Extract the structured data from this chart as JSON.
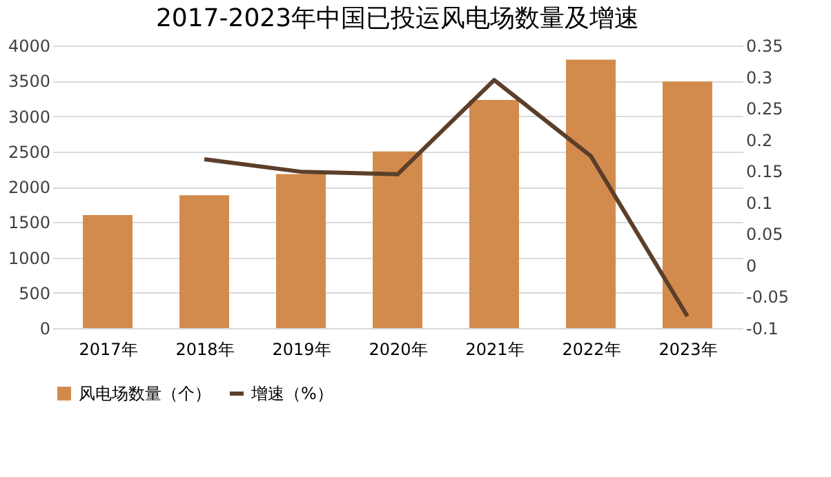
{
  "chart_data": {
    "type": "bar",
    "title": "2017-2023年中国已投运风电场数量及增速",
    "categories": [
      "2017年",
      "2018年",
      "2019年",
      "2020年",
      "2021年",
      "2022年",
      "2023年"
    ],
    "series": [
      {
        "name": "风电场数量（个）",
        "color": "#d38b4d",
        "values": [
          1600,
          1880,
          2180,
          2500,
          3230,
          3800,
          3490
        ]
      },
      {
        "name": "增速（%）",
        "type": "line",
        "axis": "y2",
        "color": "#5b3f2a",
        "values": [
          null,
          0.169,
          0.149,
          0.145,
          0.295,
          0.174,
          -0.081
        ]
      }
    ],
    "ylim": [
      0,
      4000
    ],
    "yticks": [
      0,
      500,
      1000,
      1500,
      2000,
      2500,
      3000,
      3500,
      4000
    ],
    "y2lim": [
      -0.1,
      0.35
    ],
    "y2ticks": [
      -0.1,
      -0.05,
      0,
      0.05,
      0.1,
      0.15,
      0.2,
      0.25,
      0.3,
      0.35
    ],
    "grid": "y",
    "legend": "bottom",
    "marker": "none",
    "line_style": "solid"
  }
}
